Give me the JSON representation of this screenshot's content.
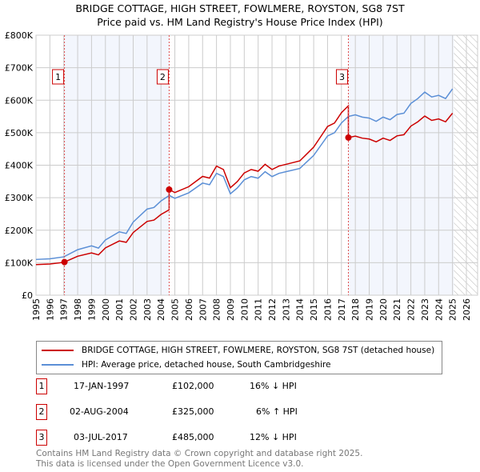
{
  "chart_data": {
    "type": "line",
    "title": "BRIDGE COTTAGE, HIGH STREET, FOWLMERE, ROYSTON, SG8 7ST",
    "subtitle": "Price paid vs. HM Land Registry's House Price Index (HPI)",
    "xlim": [
      1995,
      2026
    ],
    "ylim": [
      0,
      800000
    ],
    "x_ticks": [
      "1995",
      "1996",
      "1997",
      "1998",
      "1999",
      "2000",
      "2001",
      "2002",
      "2003",
      "2004",
      "2005",
      "2006",
      "2007",
      "2008",
      "2009",
      "2010",
      "2011",
      "2012",
      "2013",
      "2014",
      "2015",
      "2016",
      "2017",
      "2018",
      "2019",
      "2020",
      "2021",
      "2022",
      "2023",
      "2024",
      "2025",
      "2026"
    ],
    "y_ticks": [
      {
        "v": 0,
        "label": "£0"
      },
      {
        "v": 100000,
        "label": "£100K"
      },
      {
        "v": 200000,
        "label": "£200K"
      },
      {
        "v": 300000,
        "label": "£300K"
      },
      {
        "v": 400000,
        "label": "£400K"
      },
      {
        "v": 500000,
        "label": "£500K"
      },
      {
        "v": 600000,
        "label": "£600K"
      },
      {
        "v": 700000,
        "label": "£700K"
      },
      {
        "v": 800000,
        "label": "£800K"
      }
    ],
    "grid": true,
    "forecast_hatch_from": 2025.1,
    "hpi": {
      "name": "HPI: Average price, detached house, South Cambridgeshire",
      "color": "#5b8fd6",
      "x": [
        1995,
        1996,
        1997,
        1998,
        1999,
        1999.5,
        2000,
        2001,
        2001.5,
        2002,
        2003,
        2003.5,
        2004,
        2004.6,
        2005,
        2006,
        2007,
        2007.5,
        2008,
        2008.5,
        2009,
        2009.5,
        2010,
        2010.5,
        2011,
        2011.5,
        2012,
        2012.5,
        2013,
        2014,
        2015,
        2015.5,
        2016,
        2016.5,
        2017,
        2017.5,
        2018,
        2018.5,
        2019,
        2019.5,
        2020,
        2020.5,
        2021,
        2021.5,
        2022,
        2022.5,
        2023,
        2023.5,
        2024,
        2024.5,
        2025
      ],
      "y": [
        110000,
        112000,
        118000,
        140000,
        152000,
        145000,
        170000,
        195000,
        190000,
        225000,
        265000,
        270000,
        290000,
        307000,
        298000,
        315000,
        345000,
        340000,
        375000,
        365000,
        312000,
        330000,
        355000,
        365000,
        360000,
        380000,
        365000,
        375000,
        380000,
        390000,
        430000,
        460000,
        490000,
        500000,
        530000,
        550000,
        555000,
        548000,
        545000,
        535000,
        548000,
        540000,
        556000,
        560000,
        590000,
        605000,
        625000,
        610000,
        615000,
        605000,
        635000
      ]
    },
    "property": {
      "name": "BRIDGE COTTAGE, HIGH STREET, FOWLMERE, ROYSTON, SG8 7ST (detached house)",
      "color": "#cc0000"
    },
    "sales": [
      {
        "n": "1",
        "x": 1997.05,
        "date": "17-JAN-1997",
        "price": 102000,
        "price_label": "£102,000",
        "hpi": "16% ↓ HPI"
      },
      {
        "n": "2",
        "x": 2004.59,
        "date": "02-AUG-2004",
        "price": 325000,
        "price_label": "£325,000",
        "hpi": "6% ↑ HPI"
      },
      {
        "n": "3",
        "x": 2017.5,
        "date": "03-JUL-2017",
        "price": 485000,
        "price_label": "£485,000",
        "hpi": "12% ↓ HPI"
      }
    ]
  },
  "footer": [
    "Contains HM Land Registry data © Crown copyright and database right 2025.",
    "This data is licensed under the Open Government Licence v3.0."
  ]
}
